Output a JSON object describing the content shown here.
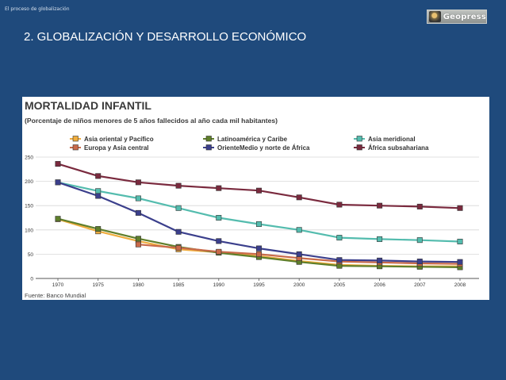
{
  "header": {
    "section_label": "El proceso de globalización",
    "logo_text": "Geopress"
  },
  "slide": {
    "title": "2. GLOBALIZACIÓN Y DESARROLLO ECONÓMICO"
  },
  "chart_data": {
    "type": "line",
    "title": "MORTALIDAD INFANTIL",
    "subtitle": "(Porcentaje de niños menores de 5 años fallecidos al año cada mil habitantes)",
    "source": "Fuente: Banco Mundial",
    "x": [
      "1970",
      "1975",
      "1980",
      "1985",
      "1990",
      "1995",
      "2000",
      "2005",
      "2006",
      "2007",
      "2008"
    ],
    "ylim": [
      0,
      250
    ],
    "yticks": [
      0,
      50,
      100,
      150,
      200,
      250
    ],
    "grid": true,
    "legend_position": "top",
    "series": [
      {
        "name": "Asia oriental y Pacífico",
        "color": "#f0ad3e",
        "values": [
          122,
          97,
          77,
          60,
          54,
          46,
          36,
          28,
          26,
          25,
          25
        ]
      },
      {
        "name": "Latinoamérica y Caribe",
        "color": "#5f7f2b",
        "values": [
          123,
          102,
          82,
          65,
          53,
          44,
          34,
          26,
          25,
          24,
          23
        ]
      },
      {
        "name": "Asia meridional",
        "color": "#54bcae",
        "values": [
          198,
          180,
          165,
          145,
          125,
          112,
          100,
          84,
          81,
          79,
          76
        ]
      },
      {
        "name": "Europa y Asia central",
        "color": "#c96a4a",
        "values": [
          null,
          null,
          70,
          63,
          55,
          50,
          42,
          35,
          33,
          31,
          30
        ]
      },
      {
        "name": "OrienteMedio y norte de África",
        "color": "#3b3f8c",
        "values": [
          198,
          170,
          135,
          96,
          77,
          62,
          50,
          38,
          37,
          35,
          34
        ]
      },
      {
        "name": "África subsahariana",
        "color": "#7a2a3e",
        "values": [
          236,
          211,
          198,
          191,
          186,
          181,
          167,
          152,
          150,
          148,
          145
        ]
      }
    ]
  }
}
